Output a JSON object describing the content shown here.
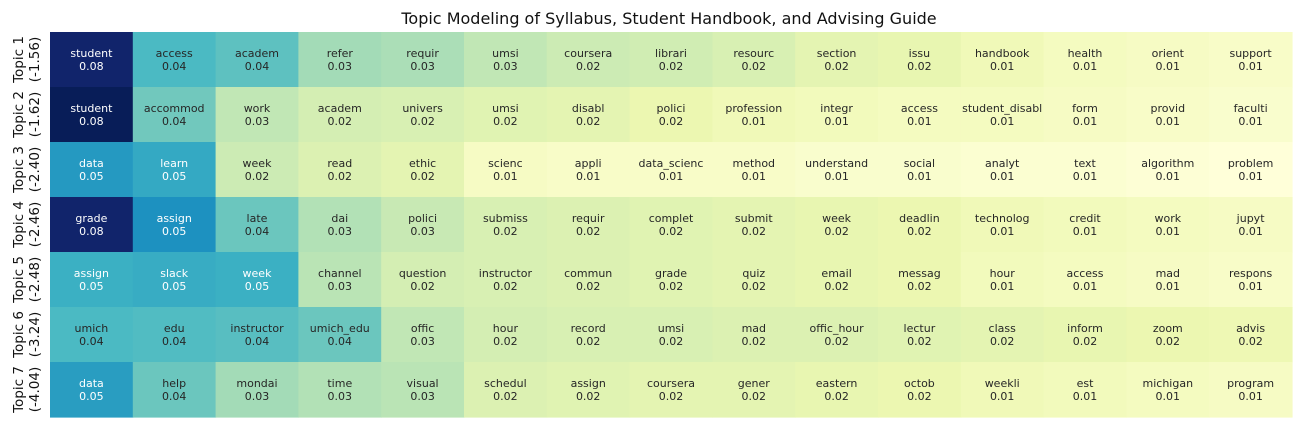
{
  "chart_data": {
    "type": "heatmap",
    "title": "Topic Modeling of Syllabus, Student Handbook, and Advising Guide",
    "xlabel": "",
    "ylabel": "",
    "rows": [
      {
        "label_line1": "Topic 1",
        "label_line2": "(-1.56)",
        "cells": [
          [
            "student",
            "0.08"
          ],
          [
            "access",
            "0.04"
          ],
          [
            "academ",
            "0.04"
          ],
          [
            "refer",
            "0.03"
          ],
          [
            "requir",
            "0.03"
          ],
          [
            "umsi",
            "0.03"
          ],
          [
            "coursera",
            "0.02"
          ],
          [
            "librari",
            "0.02"
          ],
          [
            "resourc",
            "0.02"
          ],
          [
            "section",
            "0.02"
          ],
          [
            "issu",
            "0.02"
          ],
          [
            "handbook",
            "0.01"
          ],
          [
            "health",
            "0.01"
          ],
          [
            "orient",
            "0.01"
          ],
          [
            "support",
            "0.01"
          ]
        ],
        "weights": [
          0.08,
          0.043,
          0.04,
          0.03,
          0.029,
          0.026,
          0.024,
          0.023,
          0.021,
          0.018,
          0.017,
          0.014,
          0.012,
          0.011,
          0.01
        ]
      },
      {
        "label_line1": "Topic 2",
        "label_line2": "(-1.62)",
        "cells": [
          [
            "student",
            "0.08"
          ],
          [
            "accommod",
            "0.04"
          ],
          [
            "work",
            "0.03"
          ],
          [
            "academ",
            "0.02"
          ],
          [
            "univers",
            "0.02"
          ],
          [
            "umsi",
            "0.02"
          ],
          [
            "disabl",
            "0.02"
          ],
          [
            "polici",
            "0.02"
          ],
          [
            "profession",
            "0.01"
          ],
          [
            "integr",
            "0.01"
          ],
          [
            "access",
            "0.01"
          ],
          [
            "student_disabl",
            "0.01"
          ],
          [
            "form",
            "0.01"
          ],
          [
            "provid",
            "0.01"
          ],
          [
            "faculti",
            "0.01"
          ]
        ],
        "weights": [
          0.083,
          0.037,
          0.026,
          0.022,
          0.021,
          0.019,
          0.018,
          0.016,
          0.014,
          0.013,
          0.012,
          0.012,
          0.011,
          0.01,
          0.009
        ]
      },
      {
        "label_line1": "Topic 3",
        "label_line2": "(-2.40)",
        "cells": [
          [
            "data",
            "0.05"
          ],
          [
            "learn",
            "0.05"
          ],
          [
            "week",
            "0.02"
          ],
          [
            "read",
            "0.02"
          ],
          [
            "ethic",
            "0.02"
          ],
          [
            "scienc",
            "0.01"
          ],
          [
            "appli",
            "0.01"
          ],
          [
            "data_scienc",
            "0.01"
          ],
          [
            "method",
            "0.01"
          ],
          [
            "understand",
            "0.01"
          ],
          [
            "social",
            "0.01"
          ],
          [
            "analyt",
            "0.01"
          ],
          [
            "text",
            "0.01"
          ],
          [
            "algorithm",
            "0.01"
          ],
          [
            "problem",
            "0.01"
          ]
        ],
        "weights": [
          0.052,
          0.048,
          0.024,
          0.02,
          0.018,
          0.011,
          0.01,
          0.01,
          0.01,
          0.009,
          0.009,
          0.008,
          0.008,
          0.007,
          0.006
        ]
      },
      {
        "label_line1": "Topic 4",
        "label_line2": "(-2.46)",
        "cells": [
          [
            "grade",
            "0.08"
          ],
          [
            "assign",
            "0.05"
          ],
          [
            "late",
            "0.04"
          ],
          [
            "dai",
            "0.03"
          ],
          [
            "polici",
            "0.03"
          ],
          [
            "submiss",
            "0.02"
          ],
          [
            "requir",
            "0.02"
          ],
          [
            "complet",
            "0.02"
          ],
          [
            "submit",
            "0.02"
          ],
          [
            "week",
            "0.02"
          ],
          [
            "deadlin",
            "0.02"
          ],
          [
            "technolog",
            "0.01"
          ],
          [
            "credit",
            "0.01"
          ],
          [
            "work",
            "0.01"
          ],
          [
            "jupyt",
            "0.01"
          ]
        ],
        "weights": [
          0.08,
          0.054,
          0.038,
          0.028,
          0.025,
          0.021,
          0.02,
          0.019,
          0.018,
          0.017,
          0.016,
          0.014,
          0.013,
          0.012,
          0.011
        ]
      },
      {
        "label_line1": "Topic 5",
        "label_line2": "(-2.48)",
        "cells": [
          [
            "assign",
            "0.05"
          ],
          [
            "slack",
            "0.05"
          ],
          [
            "week",
            "0.05"
          ],
          [
            "channel",
            "0.03"
          ],
          [
            "question",
            "0.02"
          ],
          [
            "instructor",
            "0.02"
          ],
          [
            "commun",
            "0.02"
          ],
          [
            "grade",
            "0.02"
          ],
          [
            "quiz",
            "0.02"
          ],
          [
            "email",
            "0.02"
          ],
          [
            "messag",
            "0.02"
          ],
          [
            "hour",
            "0.01"
          ],
          [
            "access",
            "0.01"
          ],
          [
            "mad",
            "0.01"
          ],
          [
            "respons",
            "0.01"
          ]
        ],
        "weights": [
          0.046,
          0.047,
          0.046,
          0.027,
          0.022,
          0.021,
          0.02,
          0.019,
          0.018,
          0.017,
          0.016,
          0.013,
          0.012,
          0.011,
          0.01
        ]
      },
      {
        "label_line1": "Topic 6",
        "label_line2": "(-3.24)",
        "cells": [
          [
            "umich",
            "0.04"
          ],
          [
            "edu",
            "0.04"
          ],
          [
            "instructor",
            "0.04"
          ],
          [
            "umich_edu",
            "0.04"
          ],
          [
            "offic",
            "0.03"
          ],
          [
            "hour",
            "0.02"
          ],
          [
            "record",
            "0.02"
          ],
          [
            "umsi",
            "0.02"
          ],
          [
            "mad",
            "0.02"
          ],
          [
            "offic_hour",
            "0.02"
          ],
          [
            "lectur",
            "0.02"
          ],
          [
            "class",
            "0.02"
          ],
          [
            "inform",
            "0.02"
          ],
          [
            "zoom",
            "0.02"
          ],
          [
            "advis",
            "0.02"
          ]
        ],
        "weights": [
          0.043,
          0.042,
          0.041,
          0.038,
          0.026,
          0.022,
          0.021,
          0.021,
          0.02,
          0.02,
          0.019,
          0.018,
          0.017,
          0.016,
          0.015
        ]
      },
      {
        "label_line1": "Topic 7",
        "label_line2": "(-4.04)",
        "cells": [
          [
            "data",
            "0.05"
          ],
          [
            "help",
            "0.04"
          ],
          [
            "mondai",
            "0.03"
          ],
          [
            "time",
            "0.03"
          ],
          [
            "visual",
            "0.03"
          ],
          [
            "schedul",
            "0.02"
          ],
          [
            "assign",
            "0.02"
          ],
          [
            "coursera",
            "0.02"
          ],
          [
            "gener",
            "0.02"
          ],
          [
            "eastern",
            "0.02"
          ],
          [
            "octob",
            "0.02"
          ],
          [
            "weekli",
            "0.01"
          ],
          [
            "est",
            "0.01"
          ],
          [
            "michigan",
            "0.01"
          ],
          [
            "program",
            "0.01"
          ]
        ],
        "weights": [
          0.051,
          0.038,
          0.03,
          0.028,
          0.027,
          0.02,
          0.019,
          0.018,
          0.018,
          0.017,
          0.016,
          0.014,
          0.013,
          0.012,
          0.011
        ]
      }
    ],
    "value_range": [
      0.006,
      0.083
    ],
    "colormap": "YlGnBu",
    "grid": false,
    "legend": "none"
  }
}
